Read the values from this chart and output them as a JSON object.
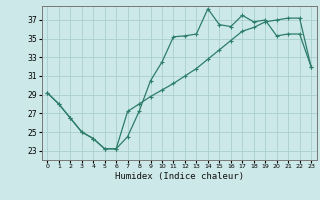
{
  "xlabel": "Humidex (Indice chaleur)",
  "ylabel": "",
  "bg_color": "#cce8e8",
  "grid_color": "#aacfcf",
  "line_color": "#2d7d6b",
  "xlim": [
    -0.5,
    23.5
  ],
  "ylim": [
    22.0,
    38.5
  ],
  "xticks": [
    0,
    1,
    2,
    3,
    4,
    5,
    6,
    7,
    8,
    9,
    10,
    11,
    12,
    13,
    14,
    15,
    16,
    17,
    18,
    19,
    20,
    21,
    22,
    23
  ],
  "yticks": [
    23,
    25,
    27,
    29,
    31,
    33,
    35,
    37
  ],
  "line1_x": [
    0,
    1,
    2,
    3,
    4,
    5,
    6,
    7,
    8,
    9,
    10,
    11,
    12,
    13,
    14,
    15,
    16,
    17,
    18,
    19,
    20,
    21,
    22,
    23
  ],
  "line1_y": [
    29.2,
    28.0,
    26.5,
    25.0,
    24.3,
    23.2,
    23.2,
    24.5,
    27.2,
    30.5,
    32.5,
    35.2,
    35.3,
    35.5,
    38.2,
    36.5,
    36.3,
    37.5,
    36.8,
    37.0,
    35.3,
    35.5,
    35.5,
    32.0
  ],
  "line2_x": [
    0,
    1,
    2,
    3,
    4,
    5,
    6,
    7,
    8,
    9,
    10,
    11,
    12,
    13,
    14,
    15,
    16,
    17,
    18,
    19,
    20,
    21,
    22,
    23
  ],
  "line2_y": [
    29.2,
    28.0,
    26.5,
    25.0,
    24.3,
    23.2,
    23.2,
    27.2,
    28.0,
    28.8,
    29.5,
    30.2,
    31.0,
    31.8,
    32.8,
    33.8,
    34.8,
    35.8,
    36.2,
    36.8,
    37.0,
    37.2,
    37.2,
    32.0
  ]
}
